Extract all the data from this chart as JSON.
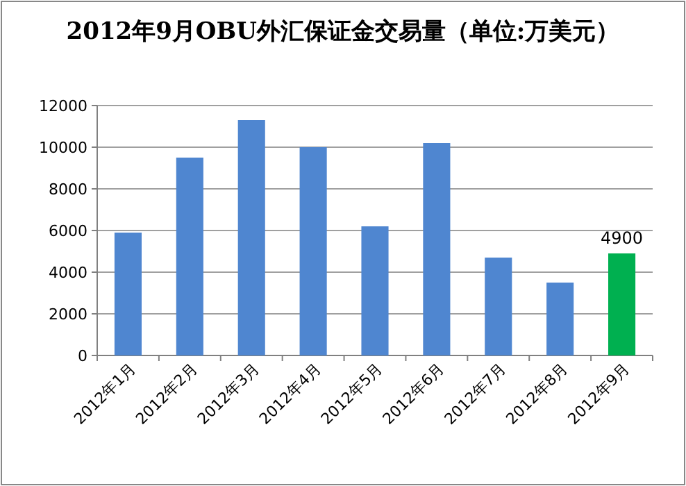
{
  "chart_data": {
    "type": "bar",
    "title": "2012年9月OBU外汇保证金交易量（单位:万美元）",
    "categories": [
      "2012年1月",
      "2012年2月",
      "2012年3月",
      "2012年4月",
      "2012年5月",
      "2012年6月",
      "2012年7月",
      "2012年8月",
      "2012年9月"
    ],
    "values": [
      5900,
      9500,
      11300,
      10000,
      6200,
      10200,
      4700,
      3500,
      4900
    ],
    "colors": [
      "#4f86d0",
      "#4f86d0",
      "#4f86d0",
      "#4f86d0",
      "#4f86d0",
      "#4f86d0",
      "#4f86d0",
      "#4f86d0",
      "#00b050"
    ],
    "value_labels": [
      null,
      null,
      null,
      null,
      null,
      null,
      null,
      null,
      "4900"
    ],
    "ylim": [
      0,
      12000
    ],
    "yticks": [
      0,
      2000,
      4000,
      6000,
      8000,
      10000,
      12000
    ],
    "grid": "y"
  }
}
